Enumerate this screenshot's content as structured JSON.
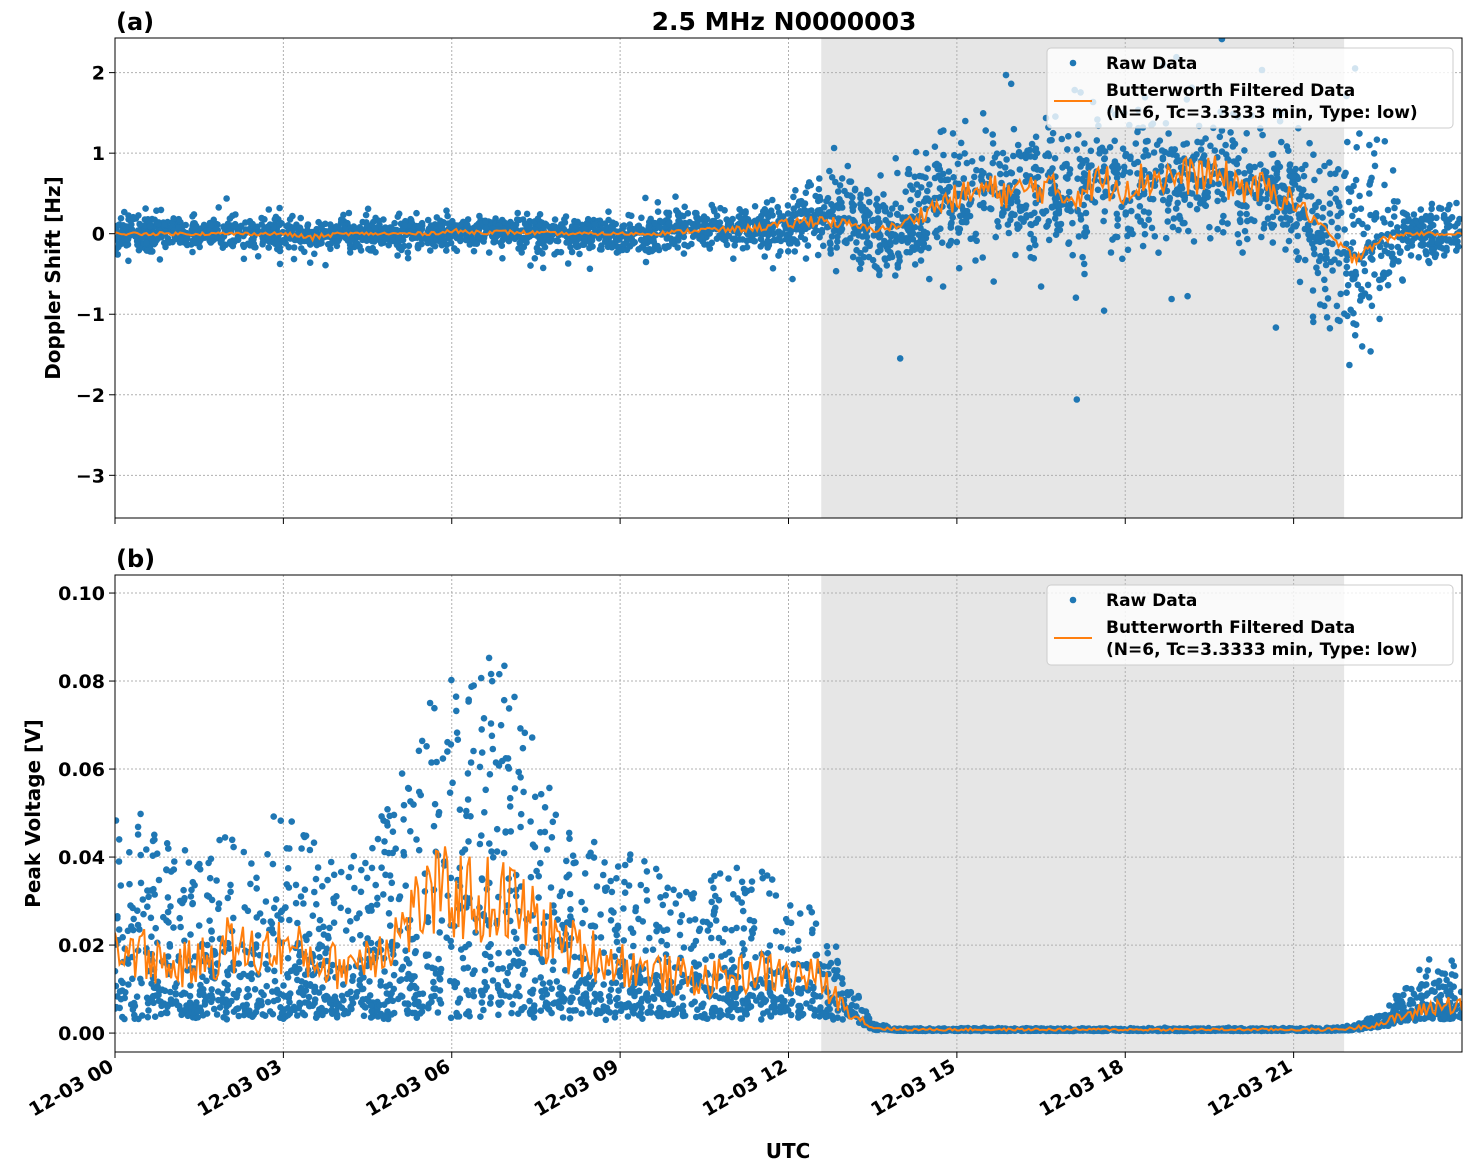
{
  "title": "2.5 MHz N0000003",
  "xlabel": "UTC",
  "colors": {
    "raw": "#1f77b4",
    "filtered": "#ff7f0e",
    "shade": "#e6e6e6"
  },
  "chart_data": [
    {
      "type": "scatter+line",
      "panel_label": "(a)",
      "ylabel": "Doppler Shift [Hz]",
      "xlim_hours": [
        0,
        24
      ],
      "ylim": [
        -3.53,
        2.43
      ],
      "grid": true,
      "legend_position": "top-right",
      "shaded_interval_utc": [
        "12-03 12:35",
        "12-03 21:54"
      ],
      "x_tick_labels": [
        "12-03 00",
        "12-03 03",
        "12-03 06",
        "12-03 09",
        "12-03 12",
        "12-03 15",
        "12-03 18",
        "12-03 21"
      ],
      "y_ticks": [
        2,
        1,
        0,
        -1,
        -2,
        -3
      ],
      "y_tick_labels": [
        "2",
        "1",
        "0",
        "−1",
        "−2",
        "−3"
      ],
      "legend": [
        "Raw Data",
        "Butterworth Filtered Data",
        "(N=6, Tc=3.3333 min, Type: low)"
      ],
      "x_hours": [
        0,
        0.5,
        1,
        1.5,
        2,
        2.5,
        3,
        3.5,
        4,
        4.5,
        5,
        5.5,
        6,
        6.5,
        7,
        7.5,
        8,
        8.5,
        9,
        9.5,
        10,
        10.5,
        11,
        11.5,
        12,
        12.5,
        13,
        13.5,
        14,
        14.5,
        15,
        15.5,
        16,
        16.5,
        17,
        17.5,
        18,
        18.5,
        19,
        19.5,
        20,
        20.5,
        21,
        21.5,
        22,
        22.5,
        23,
        23.5,
        24
      ],
      "filtered": [
        0,
        0,
        0,
        0,
        0,
        0,
        0,
        -0.05,
        0,
        0,
        0,
        0,
        0.03,
        0.02,
        0.02,
        0.01,
        0,
        0,
        0,
        0,
        0.02,
        0.05,
        0.05,
        0.08,
        0.12,
        0.18,
        0.12,
        0.05,
        0.1,
        0.3,
        0.45,
        0.55,
        0.5,
        0.6,
        0.45,
        0.65,
        0.6,
        0.7,
        0.7,
        0.75,
        0.6,
        0.55,
        0.4,
        0.1,
        -0.3,
        -0.1,
        0,
        0,
        0
      ],
      "raw_spread": [
        0.12,
        0.12,
        0.12,
        0.12,
        0.12,
        0.12,
        0.14,
        0.14,
        0.12,
        0.12,
        0.12,
        0.12,
        0.12,
        0.12,
        0.12,
        0.12,
        0.13,
        0.13,
        0.14,
        0.14,
        0.15,
        0.15,
        0.15,
        0.16,
        0.2,
        0.22,
        0.35,
        0.35,
        0.35,
        0.45,
        0.45,
        0.45,
        0.45,
        0.45,
        0.5,
        0.5,
        0.5,
        0.45,
        0.45,
        0.45,
        0.45,
        0.45,
        0.45,
        0.55,
        0.8,
        0.6,
        0.2,
        0.2,
        0.2
      ]
    },
    {
      "type": "scatter+line",
      "panel_label": "(b)",
      "ylabel": "Peak Voltage [V]",
      "xlim_hours": [
        0,
        24
      ],
      "ylim": [
        -0.0043,
        0.1041
      ],
      "grid": true,
      "legend_position": "top-right",
      "shaded_interval_utc": [
        "12-03 12:35",
        "12-03 21:54"
      ],
      "x_tick_labels": [
        "12-03 00",
        "12-03 03",
        "12-03 06",
        "12-03 09",
        "12-03 12",
        "12-03 15",
        "12-03 18",
        "12-03 21"
      ],
      "y_ticks": [
        0.1,
        0.08,
        0.06,
        0.04,
        0.02,
        0.0
      ],
      "y_tick_labels": [
        "0.10",
        "0.08",
        "0.06",
        "0.04",
        "0.02",
        "0.00"
      ],
      "legend": [
        "Raw Data",
        "Butterworth Filtered Data",
        "(N=6, Tc=3.3333 min, Type: low)"
      ],
      "x_hours": [
        0,
        0.5,
        1,
        1.5,
        2,
        2.5,
        3,
        3.5,
        4,
        4.5,
        5,
        5.5,
        6,
        6.5,
        7,
        7.5,
        8,
        8.5,
        9,
        9.5,
        10,
        10.5,
        11,
        11.5,
        12,
        12.5,
        13,
        13.5,
        14,
        14.5,
        15,
        15.5,
        16,
        16.5,
        17,
        17.5,
        18,
        18.5,
        19,
        19.5,
        20,
        20.5,
        21,
        21.5,
        22,
        22.5,
        23,
        23.5,
        24
      ],
      "filtered": [
        0.02,
        0.018,
        0.015,
        0.016,
        0.02,
        0.018,
        0.02,
        0.017,
        0.015,
        0.018,
        0.022,
        0.03,
        0.032,
        0.03,
        0.03,
        0.025,
        0.02,
        0.018,
        0.016,
        0.014,
        0.013,
        0.012,
        0.013,
        0.014,
        0.013,
        0.013,
        0.006,
        0.0012,
        0.0008,
        0.0008,
        0.0008,
        0.0008,
        0.0008,
        0.0008,
        0.0008,
        0.0008,
        0.0008,
        0.0008,
        0.0008,
        0.0008,
        0.0008,
        0.0008,
        0.0008,
        0.0008,
        0.001,
        0.002,
        0.004,
        0.006,
        0.007
      ],
      "raw_upper": [
        0.045,
        0.05,
        0.04,
        0.04,
        0.045,
        0.04,
        0.05,
        0.04,
        0.035,
        0.04,
        0.055,
        0.07,
        0.08,
        0.085,
        0.08,
        0.06,
        0.05,
        0.04,
        0.04,
        0.035,
        0.035,
        0.035,
        0.035,
        0.035,
        0.03,
        0.028,
        0.015,
        0.002,
        0.001,
        0.001,
        0.001,
        0.001,
        0.001,
        0.001,
        0.001,
        0.001,
        0.001,
        0.001,
        0.001,
        0.001,
        0.001,
        0.001,
        0.001,
        0.001,
        0.0015,
        0.004,
        0.01,
        0.018,
        0.015
      ]
    }
  ]
}
